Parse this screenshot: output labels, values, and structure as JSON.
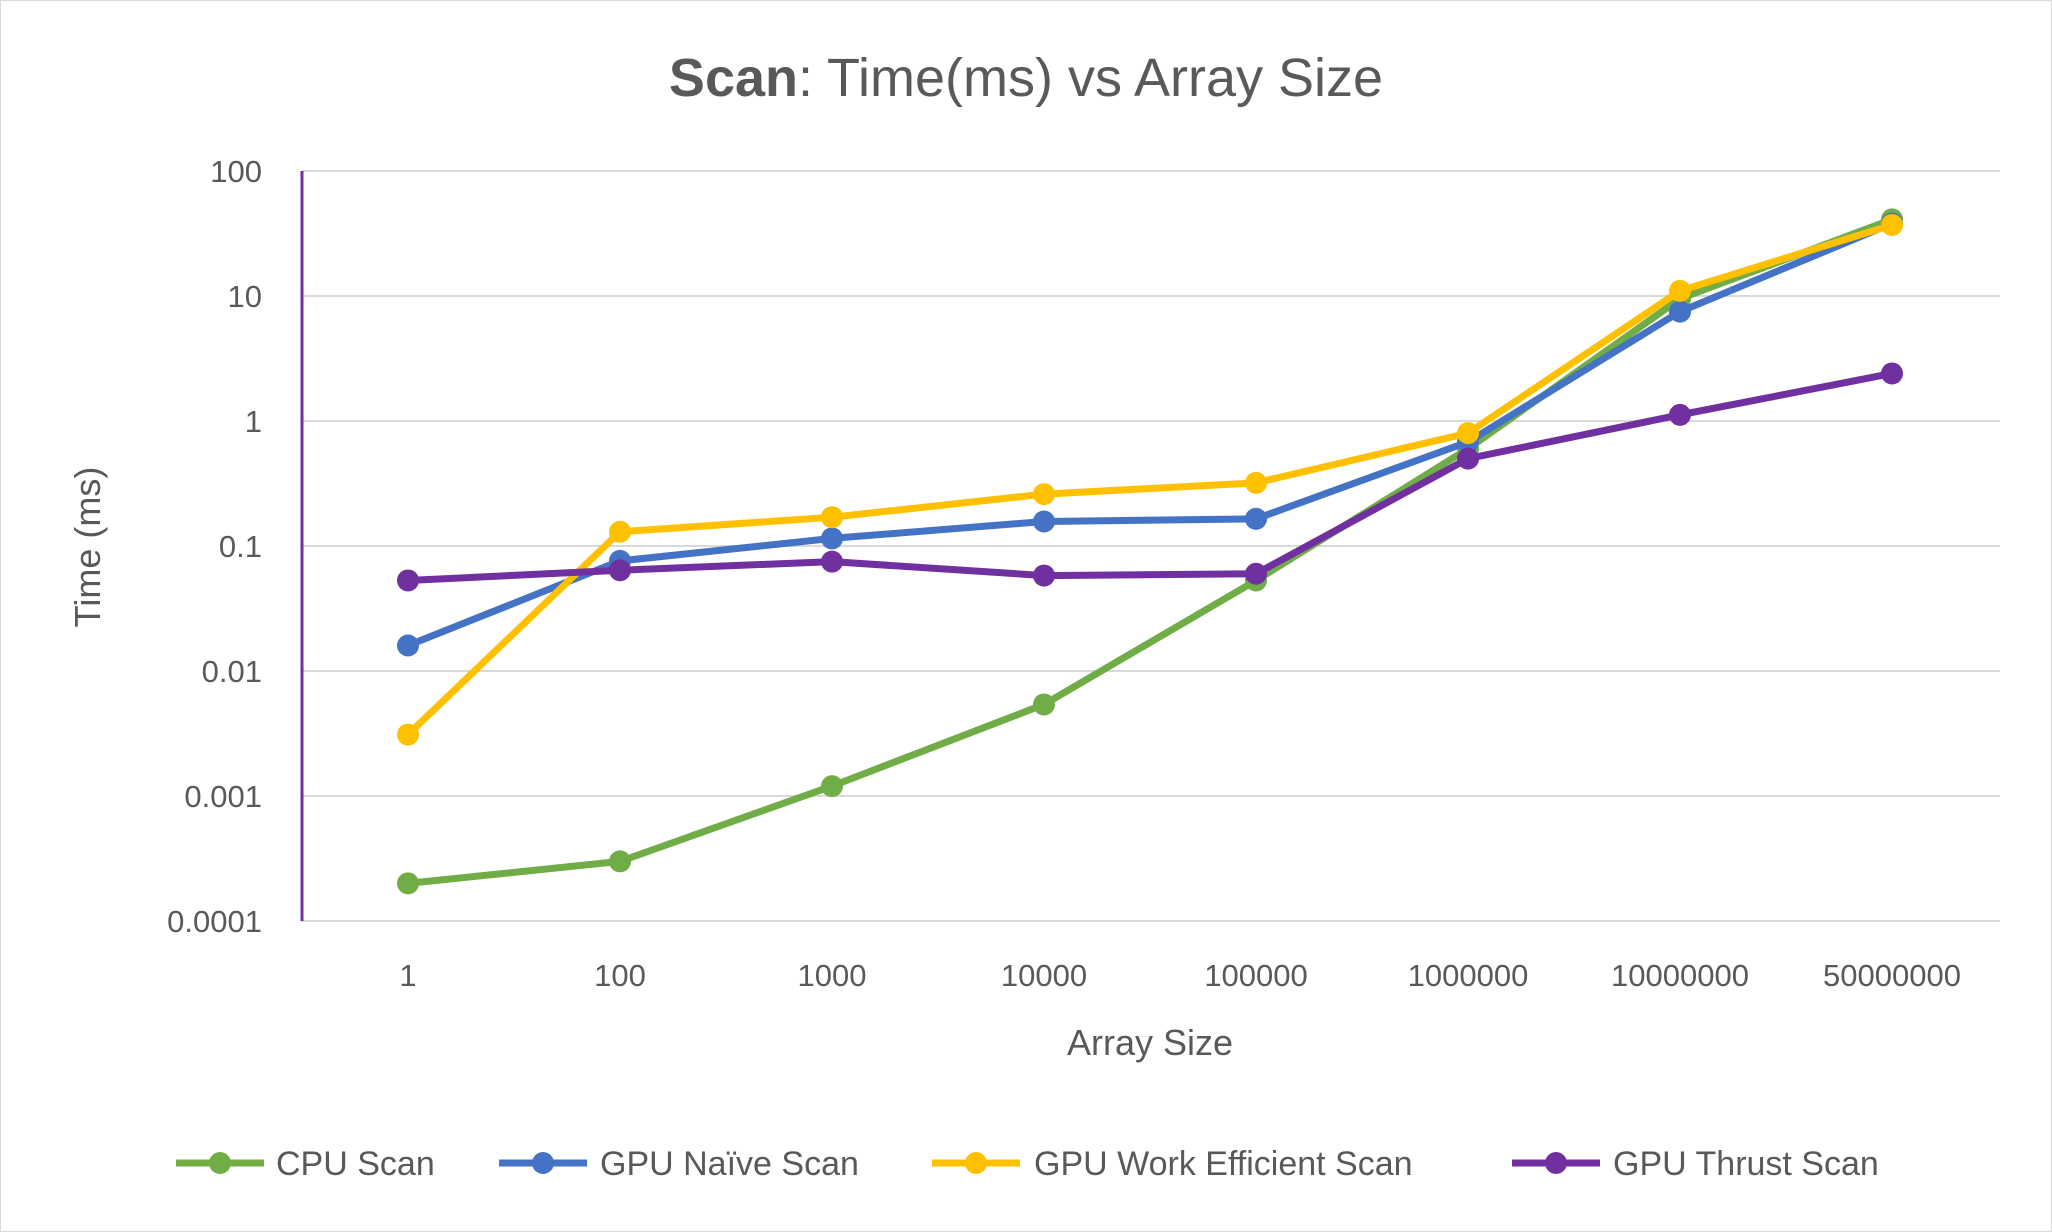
{
  "chart_data": {
    "type": "line",
    "title_bold": "Scan",
    "title_rest": ": Time(ms) vs Array Size",
    "xlabel": "Array Size",
    "ylabel": "Time (ms)",
    "yscale": "log",
    "ylim": [
      0.0001,
      100
    ],
    "yticks": [
      "0.0001",
      "0.001",
      "0.01",
      "0.1",
      "1",
      "10",
      "100"
    ],
    "categories": [
      "1",
      "100",
      "1000",
      "10000",
      "100000",
      "1000000",
      "10000000",
      "50000000"
    ],
    "grid": true,
    "legend_position": "bottom",
    "series": [
      {
        "name": "CPU Scan",
        "color": "#70ad47",
        "values": [
          0.0002,
          0.0003,
          0.0012,
          0.0054,
          0.053,
          0.6,
          9.5,
          41
        ]
      },
      {
        "name": "GPU Naïve Scan",
        "color": "#4472c4",
        "values": [
          0.016,
          0.076,
          0.115,
          0.157,
          0.165,
          0.68,
          7.5,
          38
        ]
      },
      {
        "name": "GPU Work Efficient Scan",
        "color": "#ffc000",
        "values": [
          0.0031,
          0.13,
          0.17,
          0.26,
          0.32,
          0.8,
          11,
          37
        ]
      },
      {
        "name": "GPU Thrust Scan",
        "color": "#7030a0",
        "values": [
          0.053,
          0.064,
          0.075,
          0.058,
          0.06,
          0.5,
          1.12,
          2.4
        ]
      }
    ]
  }
}
